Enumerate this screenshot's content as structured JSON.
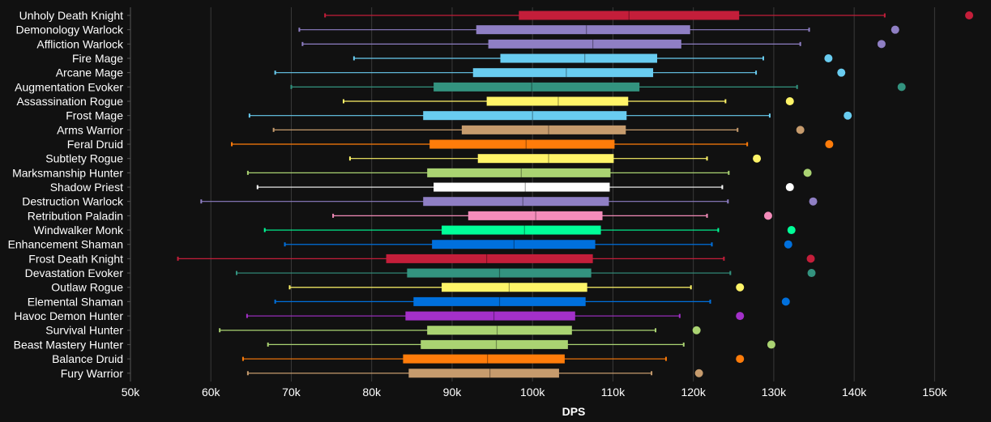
{
  "chart_data": {
    "type": "boxplot",
    "title": "",
    "xlabel": "DPS",
    "ylabel": "",
    "xlim": [
      50000,
      155000
    ],
    "xticks": [
      50000,
      60000,
      70000,
      80000,
      90000,
      100000,
      110000,
      120000,
      130000,
      140000,
      150000
    ],
    "xtick_labels": [
      "50k",
      "60k",
      "70k",
      "80k",
      "90k",
      "100k",
      "110k",
      "120k",
      "130k",
      "140k",
      "150k"
    ],
    "grid": true,
    "series": [
      {
        "name": "Unholy Death Knight",
        "color": "#c41e3a",
        "whisker_low": 74200,
        "q1": 98300,
        "median": 112000,
        "q3": 125700,
        "whisker_high": 143800,
        "outlier": 154300
      },
      {
        "name": "Demonology Warlock",
        "color": "#8f7fc4",
        "whisker_low": 71000,
        "q1": 93000,
        "median": 106700,
        "q3": 119600,
        "whisker_high": 134400,
        "outlier": 145100
      },
      {
        "name": "Affliction Warlock",
        "color": "#8f7fc4",
        "whisker_low": 71400,
        "q1": 94500,
        "median": 107500,
        "q3": 118500,
        "whisker_high": 133300,
        "outlier": 143400
      },
      {
        "name": "Fire Mage",
        "color": "#69ccf0",
        "whisker_low": 77800,
        "q1": 96000,
        "median": 106500,
        "q3": 115500,
        "whisker_high": 128700,
        "outlier": 136800
      },
      {
        "name": "Arcane Mage",
        "color": "#69ccf0",
        "whisker_low": 68000,
        "q1": 92600,
        "median": 104200,
        "q3": 115000,
        "whisker_high": 127800,
        "outlier": 138400
      },
      {
        "name": "Augmentation Evoker",
        "color": "#33937f",
        "whisker_low": 70000,
        "q1": 87700,
        "median": 99900,
        "q3": 113300,
        "whisker_high": 132900,
        "outlier": 145900
      },
      {
        "name": "Assassination Rogue",
        "color": "#fff468",
        "whisker_low": 76500,
        "q1": 94300,
        "median": 103200,
        "q3": 111900,
        "whisker_high": 124000,
        "outlier": 132000
      },
      {
        "name": "Frost Mage",
        "color": "#69ccf0",
        "whisker_low": 64800,
        "q1": 86400,
        "median": 100000,
        "q3": 111700,
        "whisker_high": 129500,
        "outlier": 139200
      },
      {
        "name": "Arms Warrior",
        "color": "#c69b6d",
        "whisker_low": 67800,
        "q1": 91200,
        "median": 102000,
        "q3": 111600,
        "whisker_high": 125500,
        "outlier": 133300
      },
      {
        "name": "Feral Druid",
        "color": "#ff7c0a",
        "whisker_low": 62600,
        "q1": 87200,
        "median": 99200,
        "q3": 110200,
        "whisker_high": 126700,
        "outlier": 136900
      },
      {
        "name": "Subtlety Rogue",
        "color": "#fff468",
        "whisker_low": 77300,
        "q1": 93200,
        "median": 102000,
        "q3": 110100,
        "whisker_high": 121700,
        "outlier": 127900
      },
      {
        "name": "Marksmanship Hunter",
        "color": "#aad372",
        "whisker_low": 64600,
        "q1": 86900,
        "median": 98600,
        "q3": 109700,
        "whisker_high": 124400,
        "outlier": 134200
      },
      {
        "name": "Shadow Priest",
        "color": "#ffffff",
        "whisker_low": 65800,
        "q1": 87700,
        "median": 99100,
        "q3": 109600,
        "whisker_high": 123600,
        "outlier": 132000
      },
      {
        "name": "Destruction Warlock",
        "color": "#8f7fc4",
        "whisker_low": 58800,
        "q1": 86400,
        "median": 98800,
        "q3": 109500,
        "whisker_high": 124300,
        "outlier": 134900
      },
      {
        "name": "Retribution Paladin",
        "color": "#f48cba",
        "whisker_low": 75200,
        "q1": 92000,
        "median": 100400,
        "q3": 108700,
        "whisker_high": 121700,
        "outlier": 129300
      },
      {
        "name": "Windwalker Monk",
        "color": "#00ff98",
        "whisker_low": 66700,
        "q1": 88700,
        "median": 99000,
        "q3": 108500,
        "whisker_high": 123100,
        "outlier": 132200
      },
      {
        "name": "Enhancement Shaman",
        "color": "#0070dd",
        "whisker_low": 69200,
        "q1": 87500,
        "median": 97700,
        "q3": 107800,
        "whisker_high": 122300,
        "outlier": 131800
      },
      {
        "name": "Frost Death Knight",
        "color": "#c41e3a",
        "whisker_low": 55900,
        "q1": 81800,
        "median": 94300,
        "q3": 107500,
        "whisker_high": 123800,
        "outlier": 134600
      },
      {
        "name": "Devastation Evoker",
        "color": "#33937f",
        "whisker_low": 63200,
        "q1": 84400,
        "median": 95900,
        "q3": 107300,
        "whisker_high": 124600,
        "outlier": 134700
      },
      {
        "name": "Outlaw Rogue",
        "color": "#fff468",
        "whisker_low": 69800,
        "q1": 88700,
        "median": 97100,
        "q3": 106800,
        "whisker_high": 119700,
        "outlier": 125800
      },
      {
        "name": "Elemental Shaman",
        "color": "#0070dd",
        "whisker_low": 68000,
        "q1": 85200,
        "median": 95900,
        "q3": 106600,
        "whisker_high": 122100,
        "outlier": 131500
      },
      {
        "name": "Havoc Demon Hunter",
        "color": "#a330c9",
        "whisker_low": 64500,
        "q1": 84200,
        "median": 95200,
        "q3": 105300,
        "whisker_high": 118300,
        "outlier": 125800
      },
      {
        "name": "Survival Hunter",
        "color": "#aad372",
        "whisker_low": 61100,
        "q1": 86900,
        "median": 95600,
        "q3": 104900,
        "whisker_high": 115300,
        "outlier": 120400
      },
      {
        "name": "Beast Mastery Hunter",
        "color": "#aad372",
        "whisker_low": 67100,
        "q1": 86100,
        "median": 95500,
        "q3": 104400,
        "whisker_high": 118800,
        "outlier": 129700
      },
      {
        "name": "Balance Druid",
        "color": "#ff7c0a",
        "whisker_low": 64000,
        "q1": 83900,
        "median": 94400,
        "q3": 104000,
        "whisker_high": 116600,
        "outlier": 125800
      },
      {
        "name": "Fury Warrior",
        "color": "#c69b6d",
        "whisker_low": 64600,
        "q1": 84600,
        "median": 94700,
        "q3": 103300,
        "whisker_high": 114800,
        "outlier": 120700
      }
    ]
  }
}
